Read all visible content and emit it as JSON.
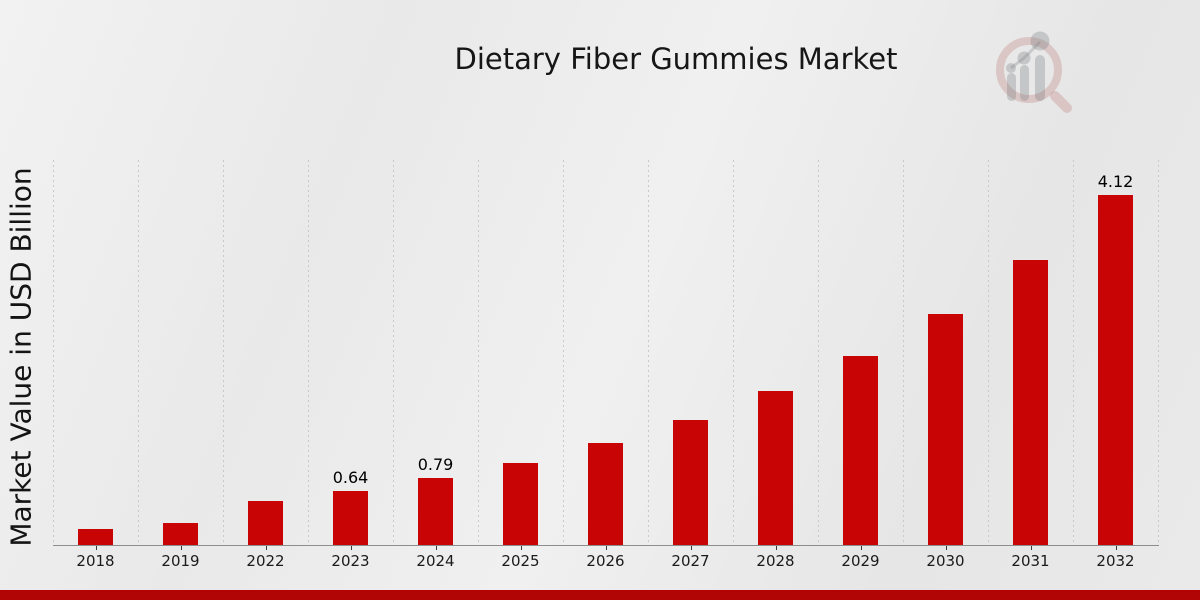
{
  "title": "Dietary Fiber Gummies Market",
  "branding": {
    "logo_name": "market-research-future-logo",
    "bottom_band_color": "#b10505"
  },
  "chart_data": {
    "type": "bar",
    "title": "Dietary Fiber Gummies Market",
    "xlabel": "",
    "ylabel": "Market Value in USD Billion",
    "categories": [
      "2018",
      "2019",
      "2022",
      "2023",
      "2024",
      "2025",
      "2026",
      "2027",
      "2028",
      "2029",
      "2030",
      "2031",
      "2032"
    ],
    "values": [
      0.19,
      0.26,
      0.52,
      0.64,
      0.79,
      0.97,
      1.2,
      1.47,
      1.81,
      2.22,
      2.72,
      3.35,
      4.12
    ],
    "data_labels": {
      "2023": "0.64",
      "2024": "0.79",
      "2032": "4.12"
    },
    "ylim": [
      0,
      4.53
    ],
    "y_ticks_visible": false,
    "grid": "vertical-dotted",
    "legend_position": "none",
    "bar_color": "#c90404",
    "gridline_color": "#c9c9c9",
    "axis_color": "#8d8d8d"
  }
}
